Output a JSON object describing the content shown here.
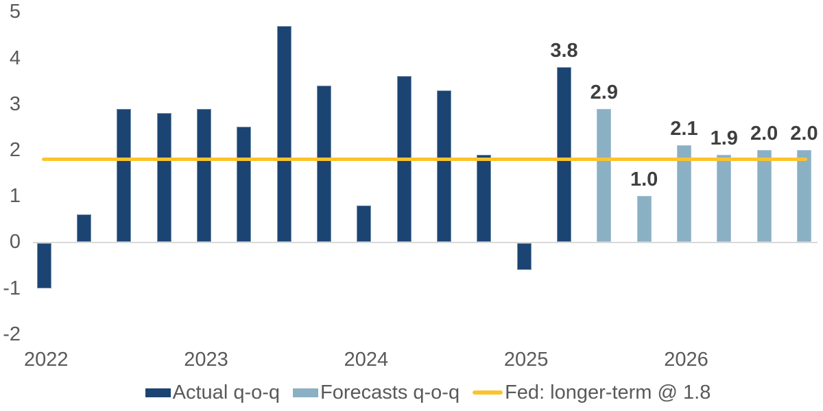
{
  "chart_data": {
    "type": "bar",
    "title": "",
    "xlabel": "",
    "ylabel": "",
    "ylim": [
      -2,
      5
    ],
    "y_ticks": [
      5,
      4,
      3,
      2,
      1,
      0,
      -1,
      -2
    ],
    "grid": "zero-baseline-only",
    "legend_position": "bottom",
    "series": [
      {
        "id": "actual",
        "name": "Actual q-o-q",
        "color": "#1b4472"
      },
      {
        "id": "forecast",
        "name": "Forecasts q-o-q",
        "color": "#8ab0c4"
      }
    ],
    "reference_line": {
      "value": 1.8,
      "label": "Fed: longer-term @ 1.8",
      "color": "#fcc32b"
    },
    "bars": [
      {
        "quarter": "2022 Q1",
        "value": -1.0,
        "series": "actual",
        "year_label": "2022"
      },
      {
        "quarter": "2022 Q2",
        "value": 0.6,
        "series": "actual"
      },
      {
        "quarter": "2022 Q3",
        "value": 2.9,
        "series": "actual"
      },
      {
        "quarter": "2022 Q4",
        "value": 2.8,
        "series": "actual"
      },
      {
        "quarter": "2023 Q1",
        "value": 2.9,
        "series": "actual",
        "year_label": "2023"
      },
      {
        "quarter": "2023 Q2",
        "value": 2.5,
        "series": "actual"
      },
      {
        "quarter": "2023 Q3",
        "value": 4.7,
        "series": "actual"
      },
      {
        "quarter": "2023 Q4",
        "value": 3.4,
        "series": "actual"
      },
      {
        "quarter": "2024 Q1",
        "value": 0.8,
        "series": "actual",
        "year_label": "2024"
      },
      {
        "quarter": "2024 Q2",
        "value": 3.6,
        "series": "actual"
      },
      {
        "quarter": "2024 Q3",
        "value": 3.3,
        "series": "actual"
      },
      {
        "quarter": "2024 Q4",
        "value": 1.9,
        "series": "actual"
      },
      {
        "quarter": "2025 Q1",
        "value": -0.6,
        "series": "actual",
        "year_label": "2025"
      },
      {
        "quarter": "2025 Q2",
        "value": 3.8,
        "series": "actual",
        "data_label": "3.8"
      },
      {
        "quarter": "2025 Q3",
        "value": 2.9,
        "series": "forecast",
        "data_label": "2.9"
      },
      {
        "quarter": "2025 Q4",
        "value": 1.0,
        "series": "forecast",
        "data_label": "1.0"
      },
      {
        "quarter": "2026 Q1",
        "value": 2.1,
        "series": "forecast",
        "data_label": "2.1",
        "year_label": "2026"
      },
      {
        "quarter": "2026 Q2",
        "value": 1.9,
        "series": "forecast",
        "data_label": "1.9"
      },
      {
        "quarter": "2026 Q3",
        "value": 2.0,
        "series": "forecast",
        "data_label": "2.0"
      },
      {
        "quarter": "2026 Q4",
        "value": 2.0,
        "series": "forecast",
        "data_label": "2.0"
      }
    ]
  },
  "legend": {
    "items": [
      {
        "label": "Actual q-o-q"
      },
      {
        "label": "Forecasts q-o-q"
      },
      {
        "label": "Fed: longer-term @ 1.8"
      }
    ]
  },
  "colors": {
    "actual_bar": "#1b4472",
    "forecast_bar": "#8ab0c4",
    "fed_line": "#fcc32b",
    "axis_text": "#595959",
    "data_label_text": "#3f3f3f",
    "zero_line": "#d9d9d9",
    "background": "#ffffff"
  }
}
